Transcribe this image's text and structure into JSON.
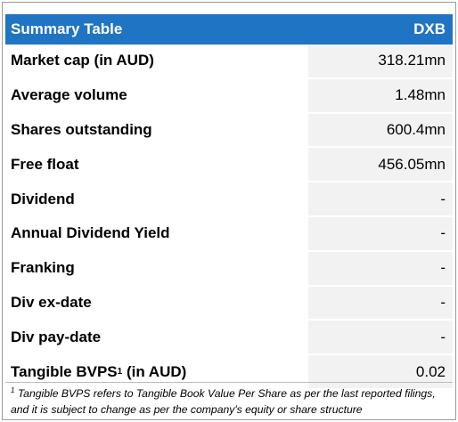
{
  "table": {
    "title": "Summary Table",
    "ticker": "DXB",
    "rows": [
      {
        "label": "Market cap (in AUD)",
        "value": "318.21mn"
      },
      {
        "label": "Average volume",
        "value": "1.48mn"
      },
      {
        "label": "Shares outstanding",
        "value": "600.4mn"
      },
      {
        "label": "Free float",
        "value": "456.05mn"
      },
      {
        "label": "Dividend",
        "value": "-"
      },
      {
        "label": "Annual Dividend Yield",
        "value": "-"
      },
      {
        "label": "Franking",
        "value": "-"
      },
      {
        "label": "Div ex-date",
        "value": "-"
      },
      {
        "label": "Div pay-date",
        "value": "-"
      },
      {
        "label": "Tangible BVPS",
        "label_sup": "1",
        "label_suffix": " (in AUD)",
        "value": "0.02"
      }
    ]
  },
  "footnote": {
    "marker": "1",
    "text": "Tangible BVPS refers to Tangible Book Value Per Share as per the last reported filings, and it is subject to change as per the company's equity or share structure"
  },
  "colors": {
    "header_bg": "#1f74c4",
    "cell_shade": "#f2f2f2"
  }
}
